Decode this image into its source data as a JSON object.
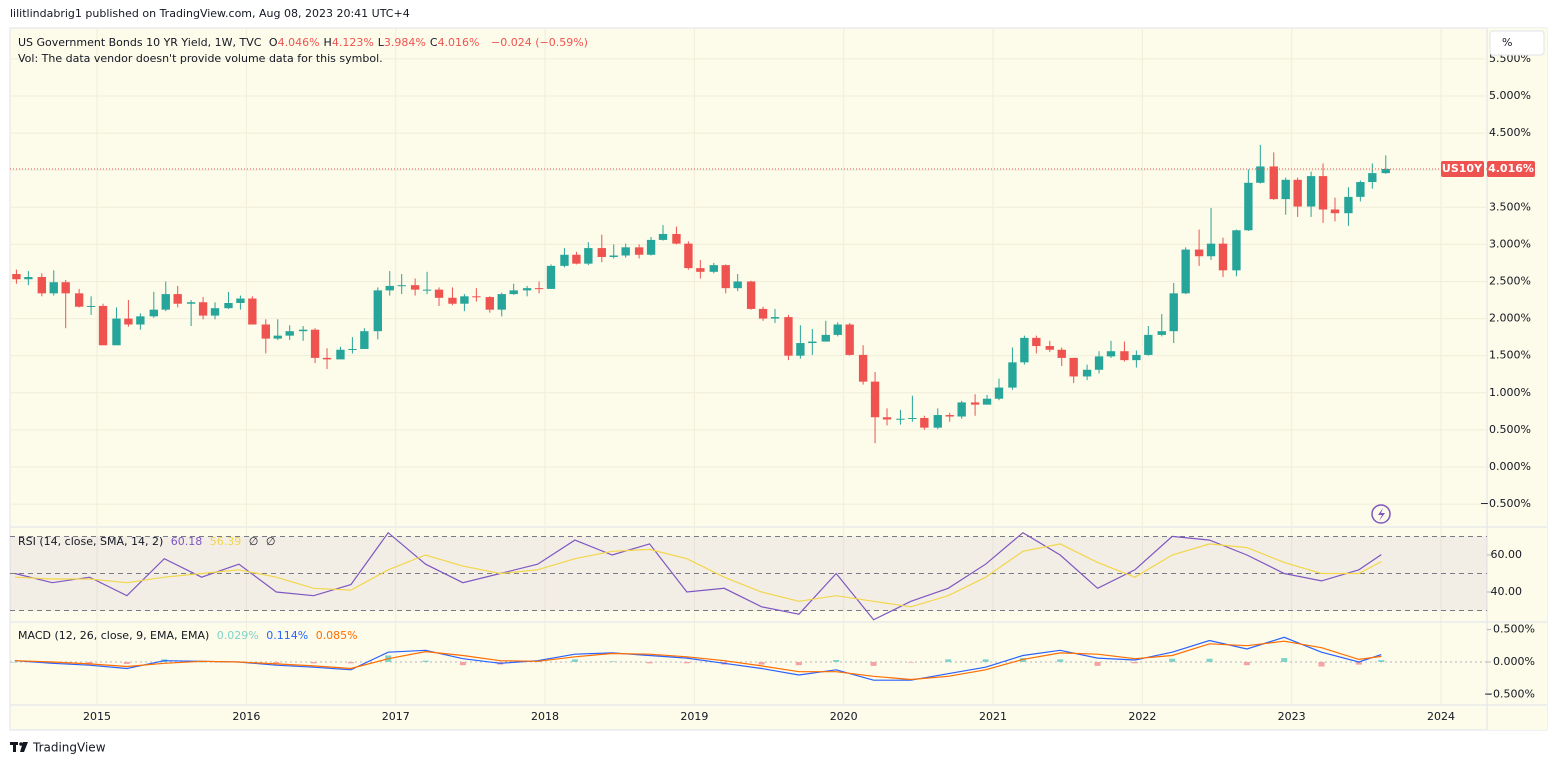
{
  "page": {
    "byline": "lilitlindabrig1 published on TradingView.com, Aug 08, 2023 20:41 UTC+4",
    "footer": "TradingView",
    "scale_button": "%"
  },
  "chart_data": {
    "type": "candlestick",
    "title": "US Government Bonds 10 YR Yield, 1W, TVC",
    "ohlc_legend": [
      {
        "label": "O",
        "value": "4.046%"
      },
      {
        "label": "H",
        "value": "4.123%"
      },
      {
        "label": "L",
        "value": "3.984%"
      },
      {
        "label": "C",
        "value": "4.016%"
      }
    ],
    "change": "−0.024 (−0.59%)",
    "note": "Vol: The data vendor doesn't provide volume data for this symbol.",
    "symbol_tag": "US10Y",
    "price_tag": "4.016%",
    "up_color": "#26a69a",
    "down_color": "#ef5350",
    "x": [
      2014.46,
      2014.54,
      2014.63,
      2014.71,
      2014.79,
      2014.88,
      2014.96,
      2015.04,
      2015.13,
      2015.21,
      2015.29,
      2015.38,
      2015.46,
      2015.54,
      2015.63,
      2015.71,
      2015.79,
      2015.88,
      2015.96,
      2016.04,
      2016.13,
      2016.21,
      2016.29,
      2016.38,
      2016.46,
      2016.54,
      2016.63,
      2016.71,
      2016.79,
      2016.88,
      2016.96,
      2017.04,
      2017.13,
      2017.21,
      2017.29,
      2017.38,
      2017.46,
      2017.54,
      2017.63,
      2017.71,
      2017.79,
      2017.88,
      2017.96,
      2018.04,
      2018.13,
      2018.21,
      2018.29,
      2018.38,
      2018.46,
      2018.54,
      2018.63,
      2018.71,
      2018.79,
      2018.88,
      2018.96,
      2019.04,
      2019.13,
      2019.21,
      2019.29,
      2019.38,
      2019.46,
      2019.54,
      2019.63,
      2019.71,
      2019.79,
      2019.88,
      2019.96,
      2020.04,
      2020.13,
      2020.21,
      2020.29,
      2020.38,
      2020.46,
      2020.54,
      2020.63,
      2020.71,
      2020.79,
      2020.88,
      2020.96,
      2021.04,
      2021.13,
      2021.21,
      2021.29,
      2021.38,
      2021.46,
      2021.54,
      2021.63,
      2021.71,
      2021.79,
      2021.88,
      2021.96,
      2022.04,
      2022.13,
      2022.21,
      2022.29,
      2022.38,
      2022.46,
      2022.54,
      2022.63,
      2022.71,
      2022.79,
      2022.88,
      2022.96,
      2023.04,
      2023.13,
      2023.21,
      2023.29,
      2023.38,
      2023.46,
      2023.54,
      2023.63
    ],
    "open": [
      2.6,
      2.53,
      2.56,
      2.34,
      2.49,
      2.34,
      2.16,
      2.17,
      1.64,
      2.0,
      1.92,
      2.03,
      2.12,
      2.33,
      2.2,
      2.22,
      2.04,
      2.14,
      2.21,
      2.27,
      1.92,
      1.73,
      1.77,
      1.83,
      1.85,
      1.47,
      1.45,
      1.58,
      1.59,
      1.83,
      2.38,
      2.44,
      2.45,
      2.39,
      2.39,
      2.28,
      2.2,
      2.3,
      2.29,
      2.12,
      2.33,
      2.38,
      2.41,
      2.4,
      2.71,
      2.86,
      2.74,
      2.95,
      2.83,
      2.85,
      2.96,
      2.86,
      3.06,
      3.14,
      3.01,
      2.68,
      2.63,
      2.72,
      2.41,
      2.5,
      2.13,
      2.0,
      2.02,
      1.5,
      1.67,
      1.69,
      1.78,
      1.92,
      1.51,
      1.15,
      0.67,
      0.64,
      0.65,
      0.66,
      0.53,
      0.7,
      0.68,
      0.87,
      0.84,
      0.92,
      1.07,
      1.41,
      1.74,
      1.63,
      1.58,
      1.47,
      1.22,
      1.31,
      1.49,
      1.56,
      1.44,
      1.51,
      1.78,
      1.83,
      2.34,
      2.93,
      2.84,
      3.01,
      2.65,
      3.19,
      3.83,
      4.05,
      3.61,
      3.87,
      3.51,
      3.92,
      3.47,
      3.42,
      3.64,
      3.84,
      3.96
    ],
    "high": [
      2.66,
      2.64,
      2.61,
      2.65,
      2.52,
      2.4,
      2.3,
      2.2,
      2.15,
      2.25,
      2.07,
      2.36,
      2.5,
      2.44,
      2.25,
      2.29,
      2.22,
      2.36,
      2.31,
      2.3,
      1.99,
      1.99,
      1.91,
      1.9,
      1.87,
      1.6,
      1.62,
      1.75,
      1.87,
      2.42,
      2.64,
      2.6,
      2.54,
      2.63,
      2.42,
      2.42,
      2.33,
      2.41,
      2.3,
      2.35,
      2.47,
      2.44,
      2.5,
      2.73,
      2.95,
      2.9,
      3.03,
      3.13,
      3.0,
      3.01,
      3.0,
      3.1,
      3.26,
      3.24,
      3.04,
      2.79,
      2.75,
      2.73,
      2.6,
      2.51,
      2.16,
      2.13,
      2.05,
      1.91,
      1.86,
      1.97,
      1.95,
      1.94,
      1.64,
      1.28,
      0.79,
      0.77,
      0.96,
      0.69,
      0.79,
      0.73,
      0.89,
      0.98,
      0.97,
      1.19,
      1.61,
      1.77,
      1.77,
      1.7,
      1.61,
      1.47,
      1.38,
      1.56,
      1.7,
      1.69,
      1.57,
      1.9,
      2.06,
      2.48,
      2.96,
      3.2,
      3.49,
      3.09,
      3.2,
      4.01,
      4.34,
      4.24,
      3.9,
      3.9,
      3.98,
      4.09,
      3.63,
      3.77,
      3.86,
      4.09,
      4.2
    ],
    "low": [
      2.47,
      2.45,
      2.3,
      2.31,
      1.87,
      2.15,
      2.05,
      1.64,
      1.65,
      1.89,
      1.85,
      2.01,
      2.1,
      2.15,
      1.9,
      1.99,
      1.99,
      2.13,
      2.12,
      1.92,
      1.53,
      1.71,
      1.71,
      1.7,
      1.4,
      1.32,
      1.5,
      1.53,
      1.59,
      1.72,
      2.31,
      2.33,
      2.31,
      2.33,
      2.17,
      2.18,
      2.1,
      2.23,
      2.08,
      2.03,
      2.32,
      2.3,
      2.34,
      2.4,
      2.69,
      2.73,
      2.72,
      2.76,
      2.81,
      2.82,
      2.81,
      2.85,
      3.05,
      3.0,
      2.66,
      2.54,
      2.61,
      2.34,
      2.37,
      2.12,
      1.97,
      1.94,
      1.44,
      1.46,
      1.51,
      1.69,
      1.76,
      1.5,
      1.11,
      0.32,
      0.56,
      0.57,
      0.61,
      0.5,
      0.51,
      0.61,
      0.65,
      0.69,
      0.84,
      0.9,
      1.04,
      1.38,
      1.53,
      1.55,
      1.36,
      1.13,
      1.17,
      1.26,
      1.47,
      1.42,
      1.34,
      1.5,
      1.76,
      1.67,
      2.33,
      2.71,
      2.79,
      2.56,
      2.57,
      3.18,
      3.82,
      3.6,
      3.4,
      3.37,
      3.37,
      3.29,
      3.31,
      3.25,
      3.58,
      3.75,
      3.95
    ],
    "close": [
      2.53,
      2.56,
      2.34,
      2.49,
      2.34,
      2.16,
      2.17,
      1.64,
      2.0,
      1.92,
      2.03,
      2.12,
      2.33,
      2.2,
      2.22,
      2.04,
      2.14,
      2.21,
      2.27,
      1.92,
      1.73,
      1.77,
      1.83,
      1.85,
      1.47,
      1.45,
      1.58,
      1.59,
      1.83,
      2.38,
      2.44,
      2.45,
      2.39,
      2.39,
      2.28,
      2.2,
      2.3,
      2.29,
      2.12,
      2.33,
      2.38,
      2.41,
      2.4,
      2.71,
      2.86,
      2.74,
      2.95,
      2.83,
      2.85,
      2.96,
      2.86,
      3.06,
      3.14,
      3.01,
      2.68,
      2.63,
      2.72,
      2.41,
      2.5,
      2.13,
      2.0,
      2.02,
      1.5,
      1.67,
      1.69,
      1.78,
      1.92,
      1.51,
      1.15,
      0.67,
      0.64,
      0.65,
      0.66,
      0.53,
      0.7,
      0.68,
      0.87,
      0.84,
      0.92,
      1.07,
      1.41,
      1.74,
      1.63,
      1.58,
      1.47,
      1.22,
      1.31,
      1.49,
      1.56,
      1.44,
      1.51,
      1.78,
      1.83,
      2.34,
      2.93,
      2.84,
      3.01,
      2.65,
      3.19,
      3.83,
      4.05,
      3.61,
      3.87,
      3.51,
      3.92,
      3.47,
      3.42,
      3.64,
      3.84,
      3.96,
      4.016
    ],
    "xlim": [
      2014.417,
      2024.308
    ],
    "xticks": [
      2015,
      2016,
      2017,
      2018,
      2019,
      2020,
      2021,
      2022,
      2023,
      2024
    ],
    "ylim": [
      -0.809,
      5.916
    ],
    "yticks": [
      {
        "value": -0.5,
        "label": "−0.500%"
      },
      {
        "value": 0,
        "label": "0.000%"
      },
      {
        "value": 0.5,
        "label": "0.500%"
      },
      {
        "value": 1,
        "label": "1.000%"
      },
      {
        "value": 1.5,
        "label": "1.500%"
      },
      {
        "value": 2,
        "label": "2.000%"
      },
      {
        "value": 2.5,
        "label": "2.500%"
      },
      {
        "value": 3,
        "label": "3.000%"
      },
      {
        "value": 3.5,
        "label": "3.500%"
      },
      {
        "value": 4,
        "label": "4.000%"
      },
      {
        "value": 4.5,
        "label": "4.500%"
      },
      {
        "value": 5,
        "label": "5.000%"
      },
      {
        "value": 5.5,
        "label": "5.500%"
      }
    ],
    "grid": true,
    "rsi": {
      "title": "RSI (14, close, SMA, 14, 2)",
      "value_label": "60.18",
      "sma_label": "56.39",
      "extra": [
        "∅",
        "∅"
      ],
      "x": [
        2014.45,
        2014.7,
        2014.95,
        2015.2,
        2015.45,
        2015.7,
        2015.95,
        2016.2,
        2016.45,
        2016.7,
        2016.95,
        2017.2,
        2017.45,
        2017.7,
        2017.95,
        2018.2,
        2018.45,
        2018.7,
        2018.95,
        2019.2,
        2019.45,
        2019.7,
        2019.95,
        2020.2,
        2020.45,
        2020.7,
        2020.95,
        2021.2,
        2021.45,
        2021.7,
        2021.95,
        2022.2,
        2022.45,
        2022.7,
        2022.95,
        2023.2,
        2023.45,
        2023.6
      ],
      "series": [
        {
          "color": "#7e57c2",
          "values": [
            50,
            45,
            48,
            38,
            58,
            48,
            55,
            40,
            38,
            44,
            72,
            55,
            45,
            50,
            55,
            68,
            60,
            66,
            40,
            42,
            32,
            28,
            50,
            25,
            35,
            42,
            55,
            72,
            60,
            42,
            52,
            70,
            68,
            60,
            50,
            46,
            52,
            60.18
          ]
        },
        {
          "color": "#f2d64b",
          "values": [
            48,
            47,
            47,
            45,
            48,
            50,
            52,
            48,
            42,
            41,
            52,
            60,
            54,
            50,
            52,
            58,
            62,
            63,
            58,
            48,
            40,
            35,
            38,
            35,
            32,
            38,
            48,
            62,
            66,
            56,
            48,
            60,
            66,
            64,
            56,
            50,
            50,
            56.39
          ]
        }
      ],
      "ylim": [
        23.8,
        75.1
      ],
      "yticks": [
        {
          "value": 40,
          "label": "40.00"
        },
        {
          "value": 60,
          "label": "60.00"
        }
      ],
      "levels": [
        30,
        50,
        70
      ]
    },
    "macd": {
      "title": "MACD (12, 26, close, 9, EMA, EMA)",
      "labels": [
        "0.029%",
        "0.114%",
        "0.085%"
      ],
      "x": [
        2014.45,
        2014.7,
        2014.95,
        2015.2,
        2015.45,
        2015.7,
        2015.95,
        2016.2,
        2016.45,
        2016.7,
        2016.95,
        2017.2,
        2017.45,
        2017.7,
        2017.95,
        2018.2,
        2018.45,
        2018.7,
        2018.95,
        2019.2,
        2019.45,
        2019.7,
        2019.95,
        2020.2,
        2020.45,
        2020.7,
        2020.95,
        2021.2,
        2021.45,
        2021.7,
        2021.95,
        2022.2,
        2022.45,
        2022.7,
        2022.95,
        2023.2,
        2023.45,
        2023.6
      ],
      "histogram": {
        "up_color": "#7fd3c9",
        "down_color": "#f5a3a2",
        "values": [
          0,
          -0.02,
          -0.02,
          -0.03,
          0.04,
          0,
          0,
          -0.02,
          -0.02,
          -0.02,
          0.1,
          0.02,
          -0.05,
          -0.04,
          0.01,
          0.04,
          0.01,
          -0.02,
          -0.02,
          -0.04,
          -0.04,
          -0.05,
          0.03,
          -0.06,
          -0.01,
          0.04,
          0.04,
          0.06,
          0.04,
          -0.06,
          -0.02,
          0.05,
          0.05,
          -0.05,
          0.06,
          -0.07,
          -0.04,
          0.029
        ]
      },
      "series": [
        {
          "color": "#2962ff",
          "values": [
            0.02,
            -0.02,
            -0.05,
            -0.1,
            0.02,
            0.01,
            0,
            -0.05,
            -0.08,
            -0.12,
            0.15,
            0.18,
            0.05,
            -0.02,
            0.02,
            0.12,
            0.14,
            0.1,
            0.06,
            -0.02,
            -0.1,
            -0.2,
            -0.12,
            -0.28,
            -0.28,
            -0.18,
            -0.08,
            0.1,
            0.18,
            0.06,
            0.03,
            0.15,
            0.33,
            0.2,
            0.38,
            0.15,
            0,
            0.114
          ]
        },
        {
          "color": "#ff6d00",
          "values": [
            0.02,
            0,
            -0.03,
            -0.07,
            -0.02,
            0.01,
            0,
            -0.03,
            -0.06,
            -0.1,
            0.05,
            0.16,
            0.1,
            0.02,
            0.01,
            0.08,
            0.13,
            0.12,
            0.08,
            0.02,
            -0.06,
            -0.15,
            -0.15,
            -0.22,
            -0.27,
            -0.22,
            -0.12,
            0.04,
            0.14,
            0.12,
            0.05,
            0.1,
            0.28,
            0.25,
            0.32,
            0.22,
            0.04,
            0.085
          ]
        }
      ],
      "ylim": [
        -0.662,
        0.615
      ],
      "yticks": [
        {
          "value": -0.5,
          "label": "−0.500%"
        },
        {
          "value": 0,
          "label": "0.000%"
        },
        {
          "value": 0.5,
          "label": "0.500%"
        }
      ]
    }
  }
}
